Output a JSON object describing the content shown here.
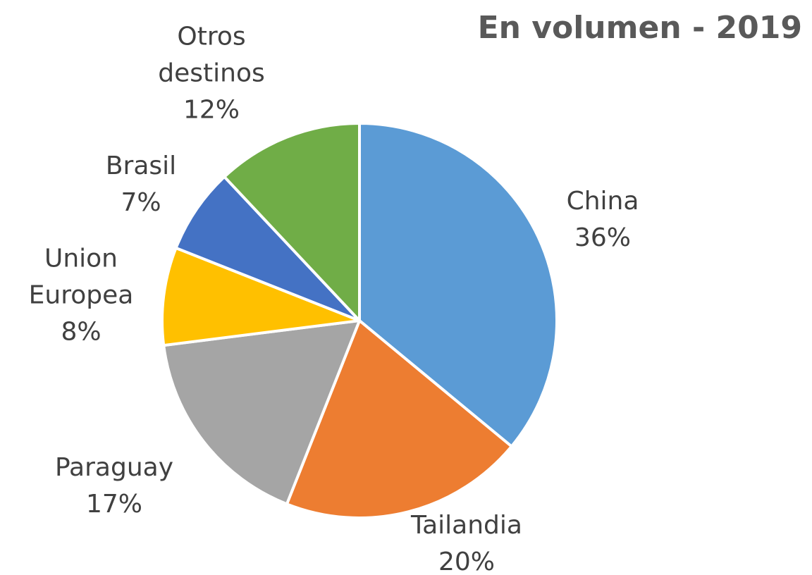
{
  "chart_data": {
    "type": "pie",
    "title": "En volumen - 2019",
    "categories": [
      "China",
      "Tailandia",
      "Paraguay",
      "Union Europea",
      "Brasil",
      "Otros destinos"
    ],
    "values": [
      36,
      20,
      17,
      8,
      7,
      12
    ],
    "value_labels": [
      "36%",
      "20%",
      "17%",
      "8%",
      "7%",
      "12%"
    ],
    "colors": [
      "#5b9bd5",
      "#ed7d31",
      "#a5a5a5",
      "#ffc000",
      "#4472c4",
      "#70ad47"
    ]
  }
}
